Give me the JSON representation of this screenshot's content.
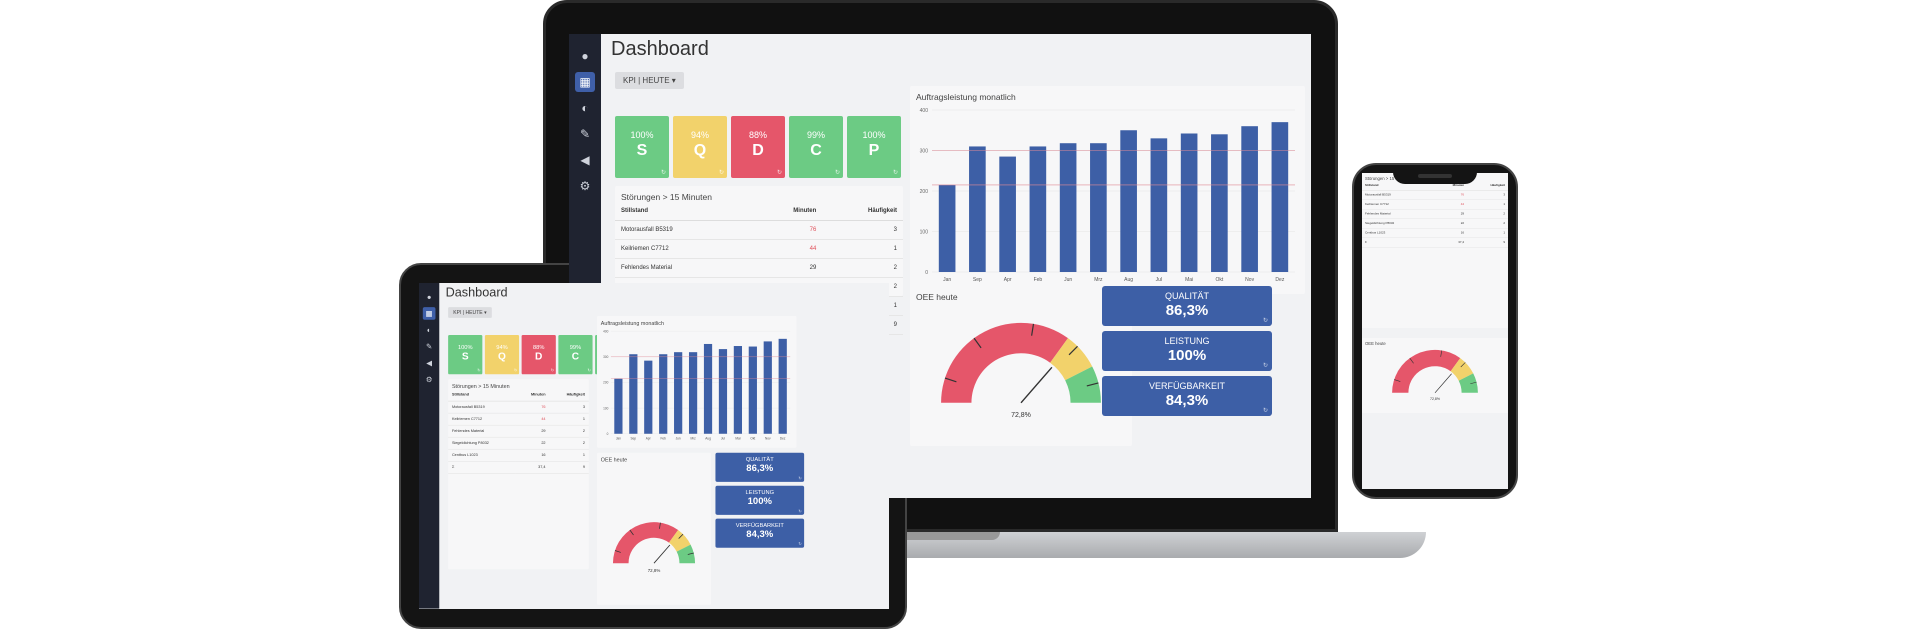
{
  "app": {
    "title": "Dashboard",
    "kpi_filter": "KPI | HEUTE",
    "sidebar_icons": [
      "user-icon",
      "dashboard-icon",
      "palette-icon",
      "edit-icon",
      "megaphone-icon",
      "settings-icon"
    ],
    "sidebar_bottom_icons": [
      "help-icon",
      "power-icon"
    ]
  },
  "kpis": [
    {
      "percent": "100%",
      "letter": "S",
      "color": "#6ccb84"
    },
    {
      "percent": "94%",
      "letter": "Q",
      "color": "#f2d26b"
    },
    {
      "percent": "88%",
      "letter": "D",
      "color": "#e5566a"
    },
    {
      "percent": "99%",
      "letter": "C",
      "color": "#6ccb84"
    },
    {
      "percent": "100%",
      "letter": "P",
      "color": "#6ccb84"
    }
  ],
  "stoerungen": {
    "title": "Störungen > 15 Minuten",
    "headers": [
      "Stillstand",
      "Minuten",
      "Häufigkeit"
    ],
    "rows": [
      {
        "name": "Motorausfall B5319",
        "minutes": "76",
        "count": "3",
        "highlight": true
      },
      {
        "name": "Keilriemen C7712",
        "minutes": "44",
        "count": "1",
        "highlight": true
      },
      {
        "name": "Fehlendes Material",
        "minutes": "29",
        "count": "2",
        "highlight": false
      },
      {
        "name": "Siegeldichtung P8032",
        "minutes": "22",
        "count": "2",
        "highlight": false
      },
      {
        "name": "Centbus L1023",
        "minutes": "16",
        "count": "1",
        "highlight": false
      }
    ],
    "total": {
      "name": "Σ",
      "minutes": "37,4",
      "count": "9"
    }
  },
  "chart_data": {
    "type": "bar",
    "title": "Auftragsleistung monatlich",
    "categories": [
      "Jan",
      "Sep",
      "Apr",
      "Feb",
      "Jun",
      "Mrz",
      "Aug",
      "Jul",
      "Mai",
      "Okt",
      "Nov",
      "Dez"
    ],
    "values": [
      215,
      310,
      285,
      310,
      318,
      318,
      350,
      330,
      342,
      340,
      360,
      370
    ],
    "ylim": [
      0,
      400
    ],
    "yticks": [
      "0",
      "100",
      "200",
      "300",
      "400"
    ],
    "target_line": 300,
    "target_line_low": 215,
    "bar_color": "#3d5fa6",
    "xlabel": "",
    "ylabel": ""
  },
  "oee": {
    "title": "OEE heute",
    "value": "72,8%",
    "gauge_value": 72.8,
    "segments": [
      {
        "from": 0,
        "to": 70,
        "color": "#e5566a"
      },
      {
        "from": 70,
        "to": 85,
        "color": "#f2d26b"
      },
      {
        "from": 85,
        "to": 100,
        "color": "#6ccb84"
      }
    ]
  },
  "metrics": [
    {
      "label": "QUALITÄT",
      "value": "86,3%"
    },
    {
      "label": "LEISTUNG",
      "value": "100%"
    },
    {
      "label": "VERFÜGBARKEIT",
      "value": "84,3%"
    }
  ]
}
